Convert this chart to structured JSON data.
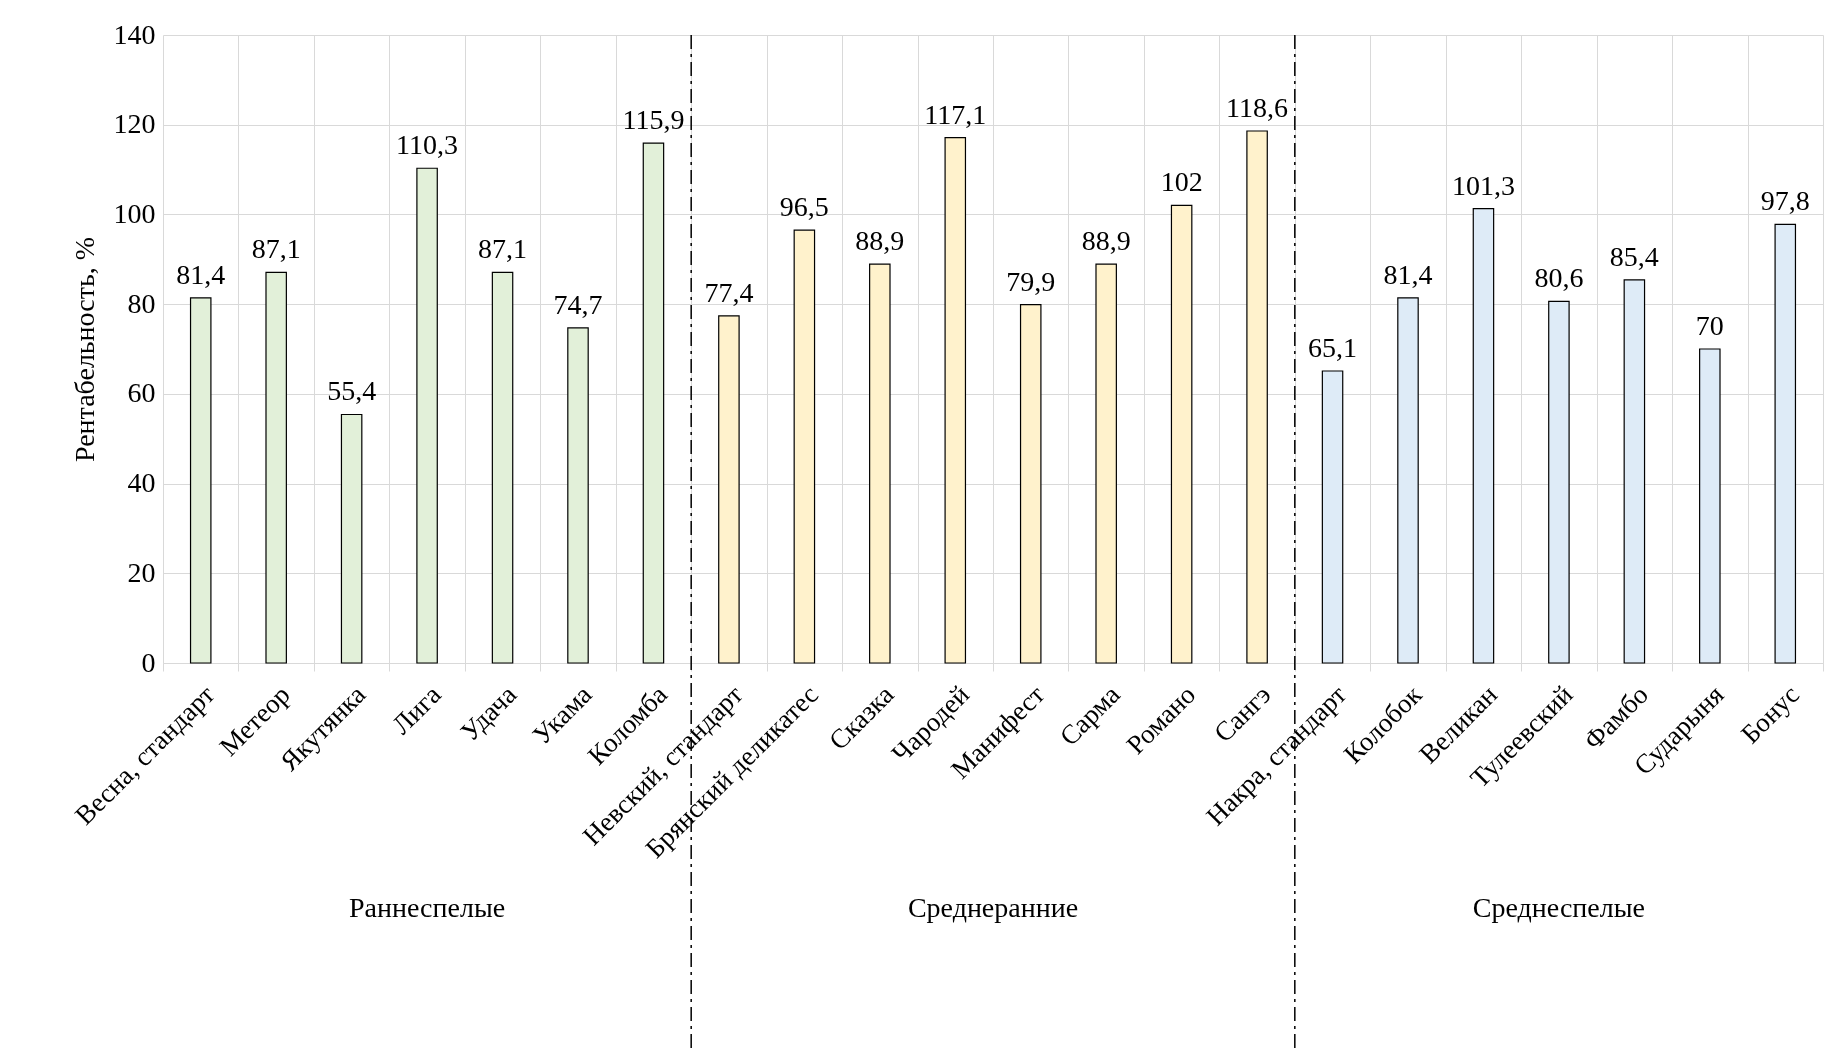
{
  "chart_data": {
    "type": "bar",
    "ylabel": "Рентабельность, %",
    "categories": [
      "Весна, стандарт",
      "Метеор",
      "Якутянка",
      "Лига",
      "Удача",
      "Укама",
      "Коломба",
      "Невский, стандарт",
      "Брянский деликатес",
      "Сказка",
      "Чародей",
      "Манифест",
      "Сарма",
      "Романо",
      "Сангэ",
      "Накра, стандарт",
      "Колобок",
      "Великан",
      "Тулеевский",
      "Фамбо",
      "Сударыня",
      "Бонус"
    ],
    "series": [
      {
        "color": "#e2f0d9",
        "values": [
          81.4,
          87.1,
          55.4,
          110.3,
          87.1,
          74.7,
          115.9,
          null,
          null,
          null,
          null,
          null,
          null,
          null,
          null,
          null,
          null,
          null,
          null,
          null,
          null,
          null
        ],
        "value_labels": [
          "81,4",
          "87,1",
          "55,4",
          "110,3",
          "87,1",
          "74,7",
          "115,9",
          null,
          null,
          null,
          null,
          null,
          null,
          null,
          null,
          null,
          null,
          null,
          null,
          null,
          null,
          null
        ]
      },
      {
        "color": "#fff2cc",
        "values": [
          null,
          null,
          null,
          null,
          null,
          null,
          null,
          77.4,
          96.5,
          88.9,
          117.1,
          79.9,
          88.9,
          102,
          118.6,
          null,
          null,
          null,
          null,
          null,
          null,
          null
        ],
        "value_labels": [
          null,
          null,
          null,
          null,
          null,
          null,
          null,
          "77,4",
          "96,5",
          "88,9",
          "117,1",
          "79,9",
          "88,9",
          "102",
          "118,6",
          null,
          null,
          null,
          null,
          null,
          null,
          null
        ]
      },
      {
        "color": "#deebf7",
        "values": [
          null,
          null,
          null,
          null,
          null,
          null,
          null,
          null,
          null,
          null,
          null,
          null,
          null,
          null,
          null,
          65.1,
          81.4,
          101.3,
          80.6,
          85.4,
          70,
          97.8
        ],
        "value_labels": [
          null,
          null,
          null,
          null,
          null,
          null,
          null,
          null,
          null,
          null,
          null,
          null,
          null,
          null,
          null,
          "65,1",
          "81,4",
          "101,3",
          "80,6",
          "85,4",
          "70",
          "97,8"
        ]
      }
    ],
    "annotations": [
      "Раннеспелые",
      "Среднеранние",
      "Среднеспелые"
    ],
    "ylim": [
      0,
      140
    ],
    "yticks": [
      0,
      20,
      40,
      60,
      80,
      100,
      120,
      140
    ],
    "grid": true
  }
}
